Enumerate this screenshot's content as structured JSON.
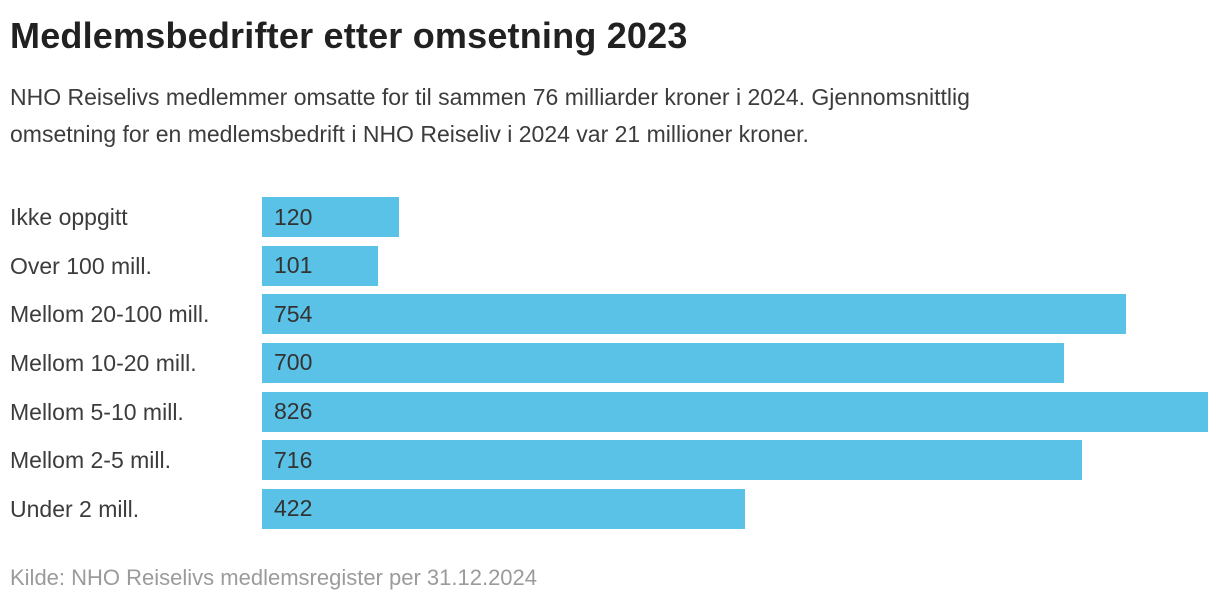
{
  "page": {
    "title": "Medlemsbedrifter etter omsetning 2023",
    "subtitle": "NHO Reiselivs medlemmer omsatte for til sammen 76 milliarder kroner i 2024. Gjennomsnittlig\nomsetning for en medlemsbedrift i NHO Reiseliv i 2024 var 21 millioner kroner.",
    "source": "Kilde: NHO Reiselivs medlemsregister per 31.12.2024"
  },
  "colors": {
    "bar": "#5bc2e7",
    "title_text": "#212121",
    "body_text": "#3c3c3c",
    "value_text": "#333333",
    "source_text": "#9b9b9b",
    "background": "#ffffff"
  },
  "chart_data": {
    "type": "bar",
    "orientation": "horizontal",
    "title": "Medlemsbedrifter etter omsetning 2023",
    "categories": [
      "Ikke oppgitt",
      "Over 100 mill.",
      "Mellom 20-100 mill.",
      "Mellom 10-20 mill.",
      "Mellom 5-10 mill.",
      "Mellom 2-5 mill.",
      "Under 2 mill."
    ],
    "values": [
      120,
      101,
      754,
      700,
      826,
      716,
      422
    ],
    "xlabel": "",
    "ylabel": "",
    "xlim": [
      0,
      826
    ],
    "grid": false,
    "legend": false,
    "value_labels": "inside-left"
  }
}
